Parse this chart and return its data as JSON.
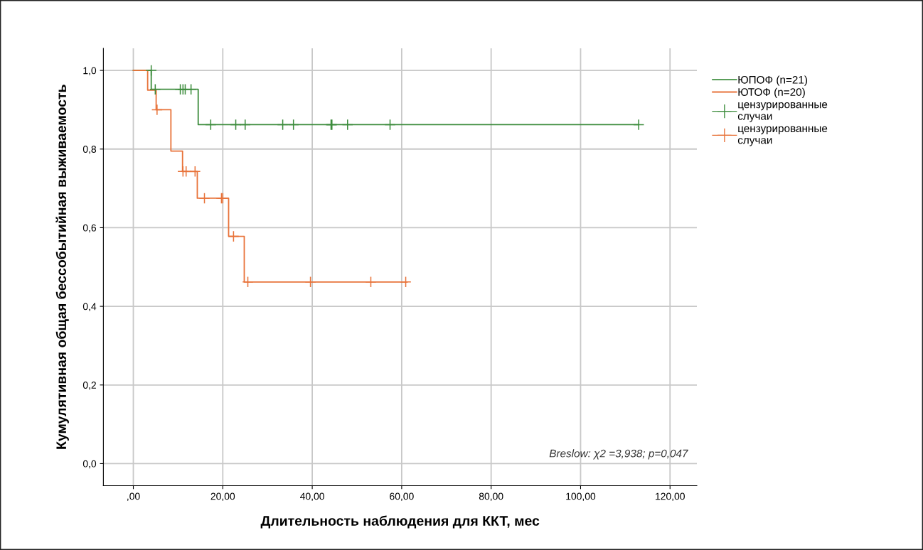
{
  "chart_data": {
    "type": "step",
    "xlabel": "Длительность наблюдения для ККТ, мес",
    "ylabel": "Кумулятивная общая бессобытийная выживаемость",
    "series": [
      {
        "name": "ЮПОФ (n=21)",
        "color": "#3c8c3c",
        "x": [
          0,
          4.0,
          14.5,
          113.0
        ],
        "values": [
          1.0,
          0.952,
          0.862,
          0.862
        ]
      },
      {
        "name": "ЮТОФ (n=20)",
        "color": "#e8733a",
        "x": [
          0,
          3.2,
          5.1,
          8.4,
          11.0,
          14.3,
          21.3,
          24.8,
          61.2
        ],
        "values": [
          1.0,
          0.95,
          0.9,
          0.795,
          0.743,
          0.675,
          0.578,
          0.462,
          0.462
        ]
      },
      {
        "name": "цензурированные случаи",
        "type": "scatter",
        "marker": "cross",
        "color": "#3c8c3c",
        "x": [
          4.0,
          4.9,
          10.5,
          11.1,
          11.6,
          12.9,
          17.3,
          22.9,
          25.0,
          33.4,
          35.8,
          44.2,
          44.4,
          47.9,
          57.4,
          113.0
        ],
        "values": [
          1.0,
          0.952,
          0.952,
          0.952,
          0.952,
          0.952,
          0.862,
          0.862,
          0.862,
          0.862,
          0.862,
          0.862,
          0.862,
          0.862,
          0.862,
          0.862
        ]
      },
      {
        "name": "цензурированные случаи",
        "type": "scatter",
        "marker": "cross",
        "color": "#e8733a",
        "x": [
          5.3,
          11.1,
          11.8,
          13.8,
          15.9,
          19.7,
          20.0,
          22.4,
          25.6,
          39.6,
          53.1,
          60.9
        ],
        "values": [
          0.9,
          0.743,
          0.743,
          0.743,
          0.675,
          0.675,
          0.675,
          0.578,
          0.462,
          0.462,
          0.462,
          0.462
        ]
      }
    ],
    "xlim": [
      -6.7,
      126
    ],
    "ylim": [
      -0.056,
      1.056
    ],
    "xticks": [
      {
        "value": 0,
        "label": ",00"
      },
      {
        "value": 20,
        "label": "20,00"
      },
      {
        "value": 40,
        "label": "40,00"
      },
      {
        "value": 60,
        "label": "60,00"
      },
      {
        "value": 80,
        "label": "80,00"
      },
      {
        "value": 100,
        "label": "100,00"
      },
      {
        "value": 120,
        "label": "120,00"
      }
    ],
    "yticks": [
      {
        "value": 0,
        "label": "0,0"
      },
      {
        "value": 0.2,
        "label": "0,2"
      },
      {
        "value": 0.4,
        "label": "0,4"
      },
      {
        "value": 0.6,
        "label": "0,6"
      },
      {
        "value": 0.8,
        "label": "0,8"
      },
      {
        "value": 1.0,
        "label": "1,0"
      }
    ],
    "grid": true,
    "legend": "right",
    "annotations": [
      "Breslow: χ2 =3,938; p=0,047"
    ]
  }
}
